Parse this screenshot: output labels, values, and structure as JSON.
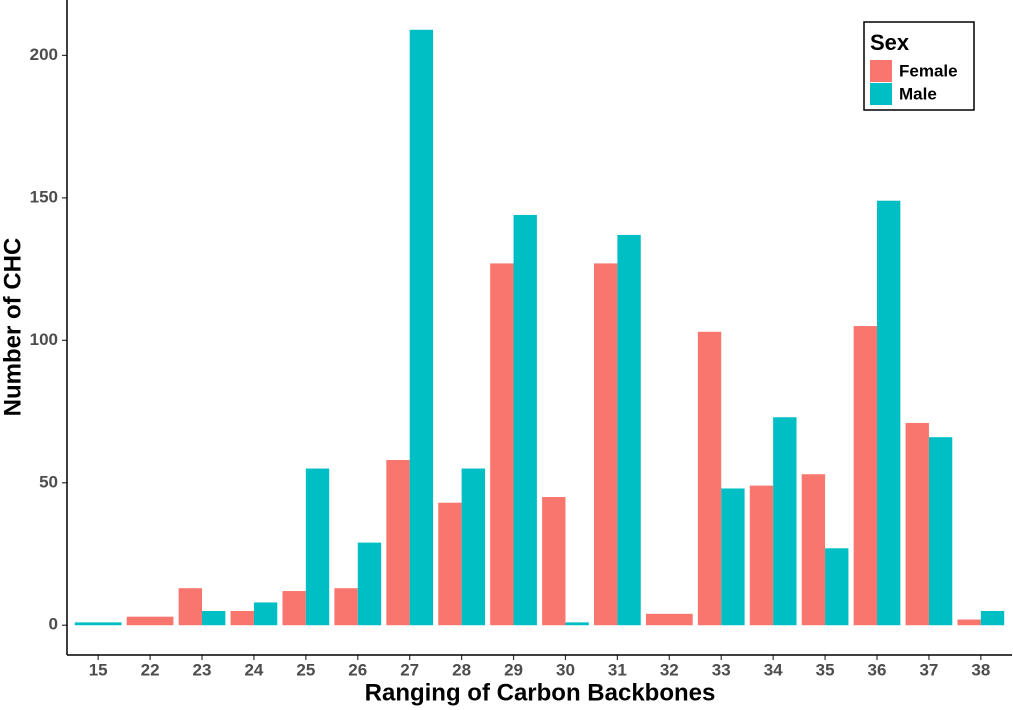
{
  "chart_data": {
    "type": "bar",
    "x_label": "Ranging of Carbon Backbones",
    "y_label": "Number of CHC",
    "legend_title": "Sex",
    "legend_position": "top-right",
    "categories": [
      "15",
      "22",
      "23",
      "24",
      "25",
      "26",
      "27",
      "28",
      "29",
      "30",
      "31",
      "32",
      "33",
      "34",
      "35",
      "36",
      "37",
      "38"
    ],
    "series": [
      {
        "name": "Female",
        "color": "#F8766D",
        "values": [
          null,
          3,
          13,
          5,
          12,
          13,
          58,
          43,
          127,
          45,
          127,
          4,
          103,
          49,
          53,
          105,
          71,
          2
        ]
      },
      {
        "name": "Male",
        "color": "#00BFC4",
        "values": [
          1,
          null,
          5,
          8,
          55,
          29,
          209,
          55,
          144,
          1,
          137,
          null,
          48,
          73,
          27,
          149,
          66,
          5
        ]
      }
    ],
    "ylim": [
      -10.45,
      219.45
    ],
    "yticks": [
      0,
      50,
      100,
      150,
      200
    ],
    "grid": false
  }
}
